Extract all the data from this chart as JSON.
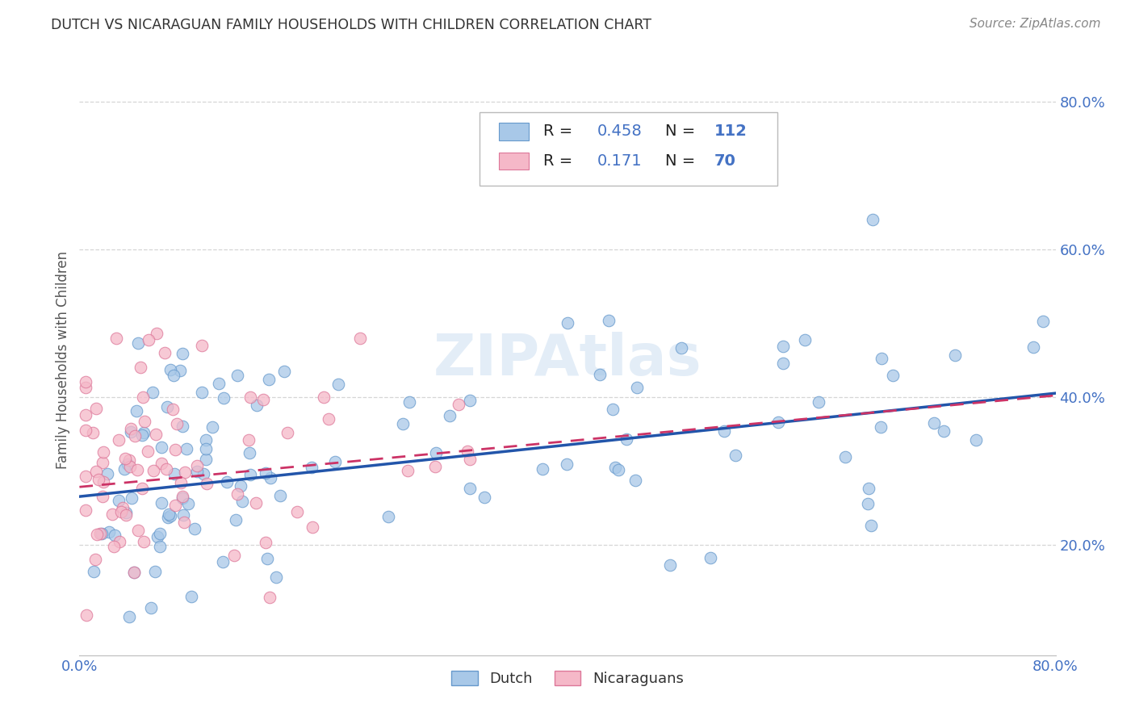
{
  "title": "DUTCH VS NICARAGUAN FAMILY HOUSEHOLDS WITH CHILDREN CORRELATION CHART",
  "source": "Source: ZipAtlas.com",
  "ylabel": "Family Households with Children",
  "watermark": "ZIPAtlas",
  "xlim": [
    0.0,
    0.8
  ],
  "ylim": [
    0.05,
    0.85
  ],
  "dutch_R": 0.458,
  "dutch_N": 112,
  "nicaraguan_R": 0.171,
  "nicaraguan_N": 70,
  "dutch_color": "#A8C8E8",
  "dutch_edge_color": "#6699CC",
  "nicaraguan_color": "#F5B8C8",
  "nicaraguan_edge_color": "#DD7799",
  "dutch_line_color": "#2255AA",
  "nicaraguan_line_color": "#CC3366",
  "legend_text_color": "#4472C4",
  "background_color": "#FFFFFF",
  "grid_color": "#CCCCCC",
  "title_color": "#333333",
  "dutch_line_intercept": 0.265,
  "dutch_line_slope": 0.175,
  "nicaraguan_line_intercept": 0.278,
  "nicaraguan_line_slope": 0.155
}
